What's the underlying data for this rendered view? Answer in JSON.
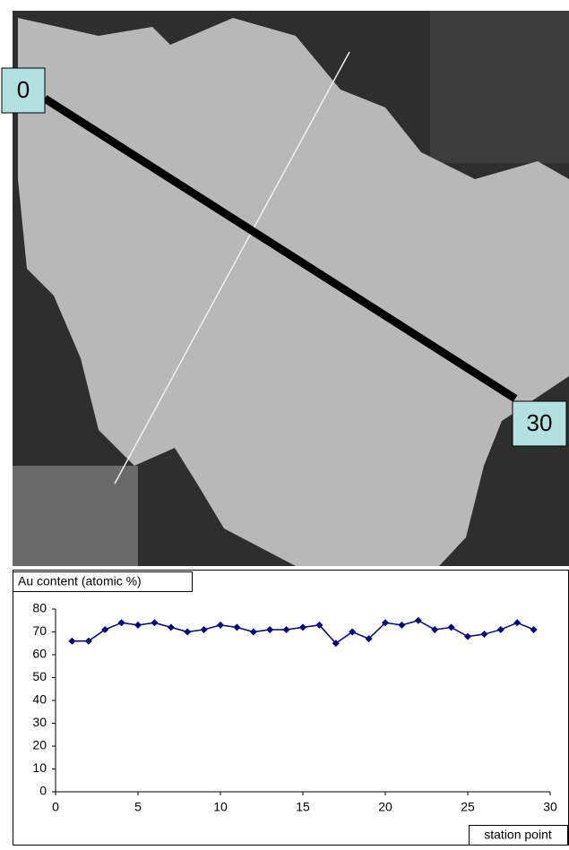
{
  "image": {
    "labels": [
      "0",
      "30"
    ]
  },
  "chart_data": {
    "type": "line",
    "title": "Au content (atomic %)",
    "x_label": "station point",
    "x": [
      1,
      2,
      3,
      4,
      5,
      6,
      7,
      8,
      9,
      10,
      11,
      12,
      13,
      14,
      15,
      16,
      17,
      18,
      19,
      20,
      21,
      22,
      23,
      24,
      25,
      26,
      27,
      28,
      29
    ],
    "values": [
      66,
      66,
      71,
      74,
      73,
      74,
      72,
      70,
      71,
      73,
      72,
      70,
      71,
      71,
      72,
      73,
      65,
      70,
      67,
      74,
      73,
      75,
      71,
      72,
      68,
      69,
      71,
      74,
      71
    ],
    "color": "#000080",
    "xlim": [
      0,
      30
    ],
    "xticks": [
      0,
      5,
      10,
      15,
      20,
      25,
      30
    ],
    "ylim": [
      0,
      80
    ],
    "yticks": [
      0,
      10,
      20,
      30,
      40,
      50,
      60,
      70,
      80
    ],
    "grid": false
  }
}
